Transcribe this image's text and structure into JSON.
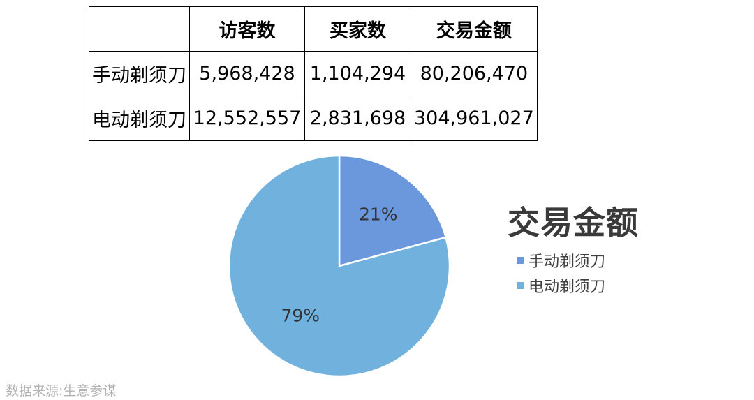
{
  "table": {
    "headers": [
      "",
      "访客数",
      "买家数",
      "交易金额"
    ],
    "rows": [
      {
        "label": "手动剃须刀",
        "visitors": "5,968,428",
        "buyers": "1,104,294",
        "amount": "80,206,470"
      },
      {
        "label": "电动剃须刀",
        "visitors": "12,552,557",
        "buyers": "2,831,698",
        "amount": "304,961,027"
      }
    ]
  },
  "chart_data": {
    "type": "pie",
    "title": "交易金额",
    "categories": [
      "手动剃须刀",
      "电动剃须刀"
    ],
    "values": [
      80206470,
      304961027
    ],
    "labels": [
      "21%",
      "79%"
    ],
    "colors": [
      "#6b97dc",
      "#70b2dd"
    ],
    "legend": "right"
  },
  "source": "数据来源:生意参谋"
}
